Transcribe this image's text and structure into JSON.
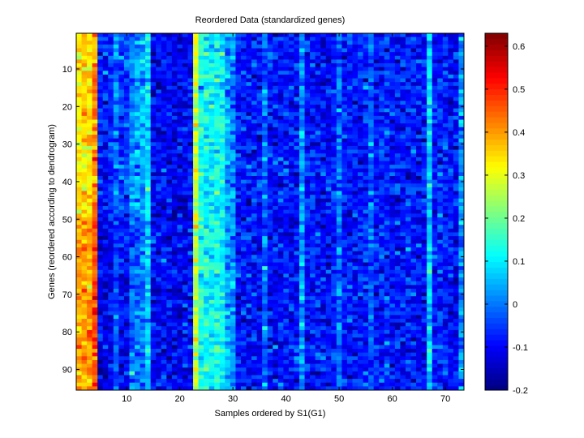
{
  "chart_data": {
    "type": "heatmap",
    "title": "Reordered Data (standardized genes)",
    "xlabel": "Samples ordered by S1(G1)",
    "ylabel": "Genes (reordered according to dendrogram)",
    "n_columns": 73,
    "n_rows": 95,
    "xlim": [
      0.5,
      73.5
    ],
    "ylim": [
      0.5,
      95.5
    ],
    "x_ticks": [
      10,
      20,
      30,
      40,
      50,
      60,
      70
    ],
    "y_ticks": [
      10,
      20,
      30,
      40,
      50,
      60,
      70,
      80,
      90
    ],
    "colormap": "jet",
    "clim": [
      -0.2,
      0.63
    ],
    "colorbar_ticks": [
      -0.2,
      -0.1,
      0,
      0.1,
      0.2,
      0.3,
      0.4,
      0.5,
      0.6
    ],
    "colorbar_tick_labels": [
      "-0.2",
      "-0.1",
      "0",
      "0.1",
      "0.2",
      "0.3",
      "0.4",
      "0.5",
      "0.6"
    ],
    "column_mean_profile": [
      0.33,
      0.35,
      0.34,
      0.42,
      -0.08,
      -0.08,
      -0.07,
      0.0,
      -0.05,
      -0.05,
      0.02,
      0.03,
      0.04,
      0.1,
      -0.1,
      -0.1,
      -0.1,
      -0.1,
      -0.11,
      -0.11,
      -0.1,
      -0.09,
      0.28,
      0.13,
      0.12,
      0.11,
      0.12,
      0.1,
      0.03,
      0.02,
      -0.08,
      -0.08,
      -0.09,
      -0.08,
      -0.08,
      -0.01,
      -0.08,
      -0.09,
      -0.08,
      -0.08,
      -0.09,
      -0.08,
      0.02,
      -0.08,
      -0.08,
      -0.08,
      -0.09,
      -0.1,
      -0.08,
      -0.01,
      -0.08,
      -0.09,
      -0.08,
      -0.08,
      -0.07,
      -0.02,
      -0.08,
      -0.08,
      -0.07,
      -0.08,
      -0.09,
      -0.09,
      -0.08,
      -0.08,
      -0.08,
      -0.08,
      0.08,
      -0.08,
      -0.07,
      -0.08,
      -0.09,
      -0.09,
      0.02
    ],
    "row_block_boundary": 49,
    "lower_block_offsets": {
      "columns_1_4": 0.05,
      "columns_5_14": -0.04
    },
    "noise_std": 0.045
  }
}
